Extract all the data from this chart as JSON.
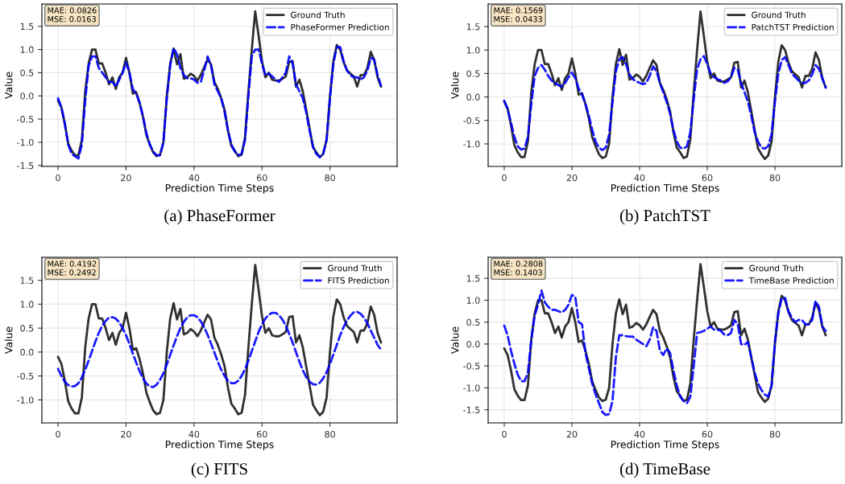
{
  "chart_data": [
    {
      "type": "line",
      "title": "(a) PhaseFormer",
      "xlabel": "Prediction Time Steps",
      "ylabel": "Value",
      "annotations": [
        "MAE: 0.0826\nMSE: 0.0163"
      ],
      "grid": true,
      "legend": "top right",
      "x": [
        0,
        1,
        2,
        3,
        4,
        5,
        6,
        7,
        8,
        9,
        10,
        11,
        12,
        13,
        14,
        15,
        16,
        17,
        18,
        19,
        20,
        21,
        22,
        23,
        24,
        25,
        26,
        27,
        28,
        29,
        30,
        31,
        32,
        33,
        34,
        35,
        36,
        37,
        38,
        39,
        40,
        41,
        42,
        43,
        44,
        45,
        46,
        47,
        48,
        49,
        50,
        51,
        52,
        53,
        54,
        55,
        56,
        57,
        58,
        59,
        60,
        61,
        62,
        63,
        64,
        65,
        66,
        67,
        68,
        69,
        70,
        71,
        72,
        73,
        74,
        75,
        76,
        77,
        78,
        79,
        80,
        81,
        82,
        83,
        84,
        85,
        86,
        87,
        88,
        89,
        90,
        91,
        92,
        93,
        94,
        95
      ],
      "xlim": [
        -4.75,
        99.75
      ],
      "xticks": [
        0,
        20,
        40,
        60,
        80
      ],
      "ylim": [
        -1.52,
        1.98
      ],
      "yticks": [
        {
          "value": -1.5,
          "label": "-1.5"
        },
        {
          "value": -1.0,
          "label": "-1.0"
        },
        {
          "value": -0.5,
          "label": "-0.5"
        },
        {
          "value": 0.0,
          "label": "0.0"
        },
        {
          "value": 0.5,
          "label": "0.5"
        },
        {
          "value": 1.0,
          "label": "1.0"
        },
        {
          "value": 1.5,
          "label": "1.5"
        }
      ],
      "series": [
        {
          "name": "Ground Truth",
          "color": "#1a1a1a",
          "line_style": "solid",
          "values": [
            -0.1,
            -0.25,
            -0.6,
            -1.03,
            -1.18,
            -1.28,
            -1.28,
            -0.95,
            0.1,
            0.7,
            1.0,
            1.0,
            0.7,
            0.7,
            0.5,
            0.25,
            0.4,
            0.15,
            0.4,
            0.5,
            0.82,
            0.5,
            0.05,
            0.08,
            -0.15,
            -0.45,
            -0.85,
            -1.05,
            -1.22,
            -1.3,
            -1.27,
            -1.0,
            0.0,
            0.7,
            1.02,
            0.68,
            0.9,
            0.37,
            0.4,
            0.48,
            0.43,
            0.33,
            0.45,
            0.62,
            0.78,
            0.68,
            0.3,
            0.15,
            -0.05,
            -0.3,
            -0.75,
            -1.08,
            -1.18,
            -1.3,
            -1.27,
            -0.9,
            0.1,
            1.0,
            1.82,
            1.3,
            0.75,
            0.4,
            0.5,
            0.35,
            0.33,
            0.33,
            0.37,
            0.42,
            0.73,
            0.75,
            0.2,
            0.35,
            0.1,
            -0.3,
            -0.7,
            -1.1,
            -1.22,
            -1.32,
            -1.25,
            -0.95,
            0.0,
            0.75,
            1.1,
            1.0,
            0.73,
            0.55,
            0.48,
            0.42,
            0.2,
            0.45,
            0.45,
            0.6,
            0.95,
            0.78,
            0.4,
            0.2
          ]
        },
        {
          "name": "PhaseFormer Prediction",
          "color": "#0000ff",
          "line_style": "dashed",
          "values": [
            -0.05,
            -0.25,
            -0.6,
            -1.05,
            -1.25,
            -1.3,
            -1.35,
            -1.05,
            -0.1,
            0.65,
            0.85,
            0.85,
            0.6,
            0.5,
            0.4,
            0.3,
            0.3,
            0.2,
            0.35,
            0.5,
            0.72,
            0.5,
            0.15,
            0.05,
            -0.15,
            -0.45,
            -0.8,
            -1.05,
            -1.2,
            -1.28,
            -1.28,
            -1.0,
            -0.05,
            0.65,
            1.03,
            0.9,
            0.6,
            0.45,
            0.38,
            0.38,
            0.35,
            0.28,
            0.3,
            0.55,
            0.85,
            0.65,
            0.25,
            0.1,
            -0.05,
            -0.35,
            -0.75,
            -1.05,
            -1.2,
            -1.28,
            -1.25,
            -0.95,
            0.0,
            0.85,
            1.0,
            1.0,
            0.7,
            0.45,
            0.48,
            0.42,
            0.35,
            0.3,
            0.4,
            0.5,
            0.85,
            0.7,
            0.25,
            0.1,
            -0.05,
            -0.35,
            -0.75,
            -1.1,
            -1.25,
            -1.32,
            -1.25,
            -0.95,
            -0.05,
            0.7,
            1.05,
            1.05,
            0.75,
            0.55,
            0.45,
            0.4,
            0.4,
            0.35,
            0.4,
            0.55,
            0.82,
            0.78,
            0.45,
            0.22
          ]
        }
      ]
    },
    {
      "type": "line",
      "title": "(b) PatchTST",
      "xlabel": "Prediction Time Steps",
      "ylabel": "Value",
      "annotations": [
        "MAE: 0.1569\nMSE: 0.0433"
      ],
      "grid": true,
      "legend": "top right",
      "x": [
        0,
        1,
        2,
        3,
        4,
        5,
        6,
        7,
        8,
        9,
        10,
        11,
        12,
        13,
        14,
        15,
        16,
        17,
        18,
        19,
        20,
        21,
        22,
        23,
        24,
        25,
        26,
        27,
        28,
        29,
        30,
        31,
        32,
        33,
        34,
        35,
        36,
        37,
        38,
        39,
        40,
        41,
        42,
        43,
        44,
        45,
        46,
        47,
        48,
        49,
        50,
        51,
        52,
        53,
        54,
        55,
        56,
        57,
        58,
        59,
        60,
        61,
        62,
        63,
        64,
        65,
        66,
        67,
        68,
        69,
        70,
        71,
        72,
        73,
        74,
        75,
        76,
        77,
        78,
        79,
        80,
        81,
        82,
        83,
        84,
        85,
        86,
        87,
        88,
        89,
        90,
        91,
        92,
        93,
        94,
        95
      ],
      "xlim": [
        -4.75,
        99.75
      ],
      "xticks": [
        0,
        20,
        40,
        60,
        80
      ],
      "ylim": [
        -1.48,
        1.98
      ],
      "yticks": [
        {
          "value": -1.0,
          "label": "-1.0"
        },
        {
          "value": -0.5,
          "label": "-0.5"
        },
        {
          "value": 0.0,
          "label": "0.0"
        },
        {
          "value": 0.5,
          "label": "0.5"
        },
        {
          "value": 1.0,
          "label": "1.0"
        },
        {
          "value": 1.5,
          "label": "1.5"
        }
      ],
      "series": [
        {
          "name": "Ground Truth",
          "color": "#1a1a1a",
          "line_style": "solid",
          "values": [
            -0.1,
            -0.25,
            -0.6,
            -1.03,
            -1.18,
            -1.28,
            -1.28,
            -0.95,
            0.1,
            0.7,
            1.0,
            1.0,
            0.7,
            0.7,
            0.5,
            0.25,
            0.4,
            0.15,
            0.4,
            0.5,
            0.82,
            0.5,
            0.05,
            0.08,
            -0.15,
            -0.45,
            -0.85,
            -1.05,
            -1.22,
            -1.3,
            -1.27,
            -1.0,
            0.0,
            0.7,
            1.02,
            0.68,
            0.9,
            0.37,
            0.4,
            0.48,
            0.43,
            0.33,
            0.45,
            0.62,
            0.78,
            0.68,
            0.3,
            0.15,
            -0.05,
            -0.3,
            -0.75,
            -1.08,
            -1.18,
            -1.3,
            -1.27,
            -0.9,
            0.1,
            1.0,
            1.82,
            1.3,
            0.75,
            0.4,
            0.5,
            0.35,
            0.33,
            0.33,
            0.37,
            0.42,
            0.73,
            0.75,
            0.2,
            0.35,
            0.1,
            -0.3,
            -0.7,
            -1.1,
            -1.22,
            -1.32,
            -1.25,
            -0.95,
            0.0,
            0.75,
            1.1,
            1.0,
            0.73,
            0.55,
            0.48,
            0.42,
            0.2,
            0.45,
            0.45,
            0.6,
            0.95,
            0.78,
            0.4,
            0.2
          ]
        },
        {
          "name": "PatchTST Prediction",
          "color": "#0000ff",
          "line_style": "dashed",
          "values": [
            -0.08,
            -0.25,
            -0.55,
            -0.85,
            -1.05,
            -1.12,
            -1.1,
            -0.85,
            -0.15,
            0.45,
            0.62,
            0.68,
            0.58,
            0.45,
            0.35,
            0.3,
            0.25,
            0.22,
            0.3,
            0.42,
            0.52,
            0.4,
            0.18,
            0.05,
            -0.15,
            -0.4,
            -0.7,
            -0.95,
            -1.08,
            -1.13,
            -1.08,
            -0.8,
            -0.1,
            0.55,
            0.8,
            0.85,
            0.7,
            0.48,
            0.38,
            0.33,
            0.3,
            0.27,
            0.3,
            0.45,
            0.65,
            0.55,
            0.3,
            0.1,
            -0.1,
            -0.35,
            -0.7,
            -0.95,
            -1.08,
            -1.1,
            -1.05,
            -0.75,
            -0.05,
            0.6,
            0.8,
            0.87,
            0.7,
            0.5,
            0.42,
            0.38,
            0.35,
            0.3,
            0.33,
            0.42,
            0.62,
            0.58,
            0.3,
            0.1,
            -0.1,
            -0.4,
            -0.75,
            -0.95,
            -1.08,
            -1.1,
            -1.05,
            -0.8,
            -0.1,
            0.5,
            0.78,
            0.85,
            0.68,
            0.5,
            0.42,
            0.35,
            0.3,
            0.3,
            0.35,
            0.48,
            0.68,
            0.6,
            0.4,
            0.2
          ]
        }
      ]
    },
    {
      "type": "line",
      "title": "(c) FITS",
      "xlabel": "Prediction Time Steps",
      "ylabel": "Value",
      "annotations": [
        "MAE: 0.4192\nMSE: 0.2492"
      ],
      "grid": true,
      "legend": "top right",
      "x": [
        0,
        1,
        2,
        3,
        4,
        5,
        6,
        7,
        8,
        9,
        10,
        11,
        12,
        13,
        14,
        15,
        16,
        17,
        18,
        19,
        20,
        21,
        22,
        23,
        24,
        25,
        26,
        27,
        28,
        29,
        30,
        31,
        32,
        33,
        34,
        35,
        36,
        37,
        38,
        39,
        40,
        41,
        42,
        43,
        44,
        45,
        46,
        47,
        48,
        49,
        50,
        51,
        52,
        53,
        54,
        55,
        56,
        57,
        58,
        59,
        60,
        61,
        62,
        63,
        64,
        65,
        66,
        67,
        68,
        69,
        70,
        71,
        72,
        73,
        74,
        75,
        76,
        77,
        78,
        79,
        80,
        81,
        82,
        83,
        84,
        85,
        86,
        87,
        88,
        89,
        90,
        91,
        92,
        93,
        94,
        95
      ],
      "xlim": [
        -4.75,
        99.75
      ],
      "xticks": [
        0,
        20,
        40,
        60,
        80
      ],
      "ylim": [
        -1.48,
        1.98
      ],
      "yticks": [
        {
          "value": -1.0,
          "label": "-1.0"
        },
        {
          "value": -0.5,
          "label": "-0.5"
        },
        {
          "value": 0.0,
          "label": "0.0"
        },
        {
          "value": 0.5,
          "label": "0.5"
        },
        {
          "value": 1.0,
          "label": "1.0"
        },
        {
          "value": 1.5,
          "label": "1.5"
        }
      ],
      "series": [
        {
          "name": "Ground Truth",
          "color": "#1a1a1a",
          "line_style": "solid",
          "values": [
            -0.1,
            -0.25,
            -0.6,
            -1.03,
            -1.18,
            -1.28,
            -1.28,
            -0.95,
            0.1,
            0.7,
            1.0,
            1.0,
            0.7,
            0.7,
            0.5,
            0.25,
            0.4,
            0.15,
            0.4,
            0.5,
            0.82,
            0.5,
            0.05,
            0.08,
            -0.15,
            -0.45,
            -0.85,
            -1.05,
            -1.22,
            -1.3,
            -1.27,
            -1.0,
            0.0,
            0.7,
            1.02,
            0.68,
            0.9,
            0.37,
            0.4,
            0.48,
            0.43,
            0.33,
            0.45,
            0.62,
            0.78,
            0.68,
            0.3,
            0.15,
            -0.05,
            -0.3,
            -0.75,
            -1.08,
            -1.18,
            -1.3,
            -1.27,
            -0.9,
            0.1,
            1.0,
            1.82,
            1.3,
            0.75,
            0.4,
            0.5,
            0.35,
            0.33,
            0.33,
            0.37,
            0.42,
            0.73,
            0.75,
            0.2,
            0.35,
            0.1,
            -0.3,
            -0.7,
            -1.1,
            -1.22,
            -1.32,
            -1.25,
            -0.95,
            0.0,
            0.75,
            1.1,
            1.0,
            0.73,
            0.55,
            0.48,
            0.42,
            0.2,
            0.45,
            0.45,
            0.6,
            0.95,
            0.78,
            0.4,
            0.2
          ]
        },
        {
          "name": "FITS Prediction",
          "color": "#0000ff",
          "line_style": "dashed",
          "values": [
            -0.35,
            -0.5,
            -0.62,
            -0.69,
            -0.72,
            -0.71,
            -0.65,
            -0.53,
            -0.37,
            -0.18,
            0.02,
            0.22,
            0.4,
            0.55,
            0.65,
            0.72,
            0.73,
            0.7,
            0.62,
            0.5,
            0.35,
            0.17,
            -0.03,
            -0.22,
            -0.4,
            -0.55,
            -0.66,
            -0.72,
            -0.73,
            -0.68,
            -0.58,
            -0.44,
            -0.26,
            -0.06,
            0.14,
            0.33,
            0.5,
            0.63,
            0.72,
            0.77,
            0.77,
            0.73,
            0.64,
            0.52,
            0.36,
            0.18,
            -0.01,
            -0.2,
            -0.37,
            -0.5,
            -0.6,
            -0.65,
            -0.65,
            -0.6,
            -0.5,
            -0.36,
            -0.18,
            0.02,
            0.22,
            0.42,
            0.58,
            0.7,
            0.78,
            0.82,
            0.82,
            0.77,
            0.68,
            0.55,
            0.38,
            0.2,
            0.0,
            -0.2,
            -0.38,
            -0.52,
            -0.62,
            -0.67,
            -0.68,
            -0.64,
            -0.55,
            -0.42,
            -0.25,
            -0.05,
            0.15,
            0.35,
            0.52,
            0.66,
            0.76,
            0.83,
            0.84,
            0.8,
            0.72,
            0.6,
            0.45,
            0.3,
            0.15,
            0.05
          ]
        }
      ]
    },
    {
      "type": "line",
      "title": "(d) TimeBase",
      "xlabel": "Prediction Time Steps",
      "ylabel": "Value",
      "annotations": [
        "MAE: 0.2808\nMSE: 0.1403"
      ],
      "grid": true,
      "legend": "top right",
      "x": [
        0,
        1,
        2,
        3,
        4,
        5,
        6,
        7,
        8,
        9,
        10,
        11,
        12,
        13,
        14,
        15,
        16,
        17,
        18,
        19,
        20,
        21,
        22,
        23,
        24,
        25,
        26,
        27,
        28,
        29,
        30,
        31,
        32,
        33,
        34,
        35,
        36,
        37,
        38,
        39,
        40,
        41,
        42,
        43,
        44,
        45,
        46,
        47,
        48,
        49,
        50,
        51,
        52,
        53,
        54,
        55,
        56,
        57,
        58,
        59,
        60,
        61,
        62,
        63,
        64,
        65,
        66,
        67,
        68,
        69,
        70,
        71,
        72,
        73,
        74,
        75,
        76,
        77,
        78,
        79,
        80,
        81,
        82,
        83,
        84,
        85,
        86,
        87,
        88,
        89,
        90,
        91,
        92,
        93,
        94,
        95
      ],
      "xlim": [
        -4.75,
        99.75
      ],
      "xticks": [
        0,
        20,
        40,
        60,
        80
      ],
      "ylim": [
        -1.8,
        1.98
      ],
      "yticks": [
        {
          "value": -1.5,
          "label": "-1.5"
        },
        {
          "value": -1.0,
          "label": "-1.0"
        },
        {
          "value": -0.5,
          "label": "-0.5"
        },
        {
          "value": 0.0,
          "label": "0.0"
        },
        {
          "value": 0.5,
          "label": "0.5"
        },
        {
          "value": 1.0,
          "label": "1.0"
        },
        {
          "value": 1.5,
          "label": "1.5"
        }
      ],
      "series": [
        {
          "name": "Ground Truth",
          "color": "#1a1a1a",
          "line_style": "solid",
          "values": [
            -0.1,
            -0.25,
            -0.6,
            -1.03,
            -1.18,
            -1.28,
            -1.28,
            -0.95,
            0.1,
            0.7,
            1.0,
            1.0,
            0.7,
            0.7,
            0.5,
            0.25,
            0.4,
            0.15,
            0.4,
            0.5,
            0.82,
            0.5,
            0.05,
            0.08,
            -0.15,
            -0.45,
            -0.85,
            -1.05,
            -1.22,
            -1.3,
            -1.27,
            -1.0,
            0.0,
            0.7,
            1.02,
            0.68,
            0.9,
            0.37,
            0.4,
            0.48,
            0.43,
            0.33,
            0.45,
            0.62,
            0.78,
            0.68,
            0.3,
            0.15,
            -0.05,
            -0.3,
            -0.75,
            -1.08,
            -1.18,
            -1.3,
            -1.27,
            -0.9,
            0.1,
            1.0,
            1.82,
            1.3,
            0.75,
            0.4,
            0.5,
            0.35,
            0.33,
            0.33,
            0.37,
            0.42,
            0.73,
            0.75,
            0.2,
            0.35,
            0.1,
            -0.3,
            -0.7,
            -1.1,
            -1.22,
            -1.32,
            -1.25,
            -0.95,
            0.0,
            0.75,
            1.1,
            1.0,
            0.73,
            0.55,
            0.48,
            0.42,
            0.2,
            0.45,
            0.45,
            0.6,
            0.95,
            0.78,
            0.4,
            0.2
          ]
        },
        {
          "name": "TimeBase Prediction",
          "color": "#0000ff",
          "line_style": "dashed",
          "values": [
            0.42,
            0.2,
            -0.15,
            -0.45,
            -0.7,
            -0.85,
            -0.85,
            -0.65,
            0.1,
            0.65,
            0.9,
            1.22,
            0.95,
            0.85,
            0.78,
            0.78,
            0.75,
            0.72,
            0.78,
            0.9,
            1.12,
            1.08,
            0.5,
            0.45,
            -0.2,
            -0.55,
            -0.9,
            -1.15,
            -1.35,
            -1.55,
            -1.62,
            -1.6,
            -1.3,
            -0.3,
            0.2,
            0.2,
            0.18,
            0.17,
            0.17,
            0.1,
            0.05,
            0.0,
            -0.05,
            0.1,
            0.38,
            0.3,
            -0.15,
            -0.25,
            -0.1,
            -0.2,
            -0.6,
            -0.95,
            -1.2,
            -1.3,
            -1.35,
            -1.2,
            -0.5,
            0.25,
            0.27,
            0.3,
            0.35,
            0.4,
            0.33,
            0.33,
            0.3,
            0.22,
            0.2,
            0.25,
            0.55,
            0.45,
            0.0,
            -0.02,
            0.05,
            -0.3,
            -0.65,
            -0.9,
            -1.05,
            -1.15,
            -1.2,
            -0.95,
            0.05,
            0.7,
            1.05,
            1.05,
            0.75,
            0.6,
            0.5,
            0.55,
            0.55,
            0.45,
            0.45,
            0.55,
            0.98,
            0.85,
            0.4,
            0.3
          ]
        }
      ]
    }
  ]
}
